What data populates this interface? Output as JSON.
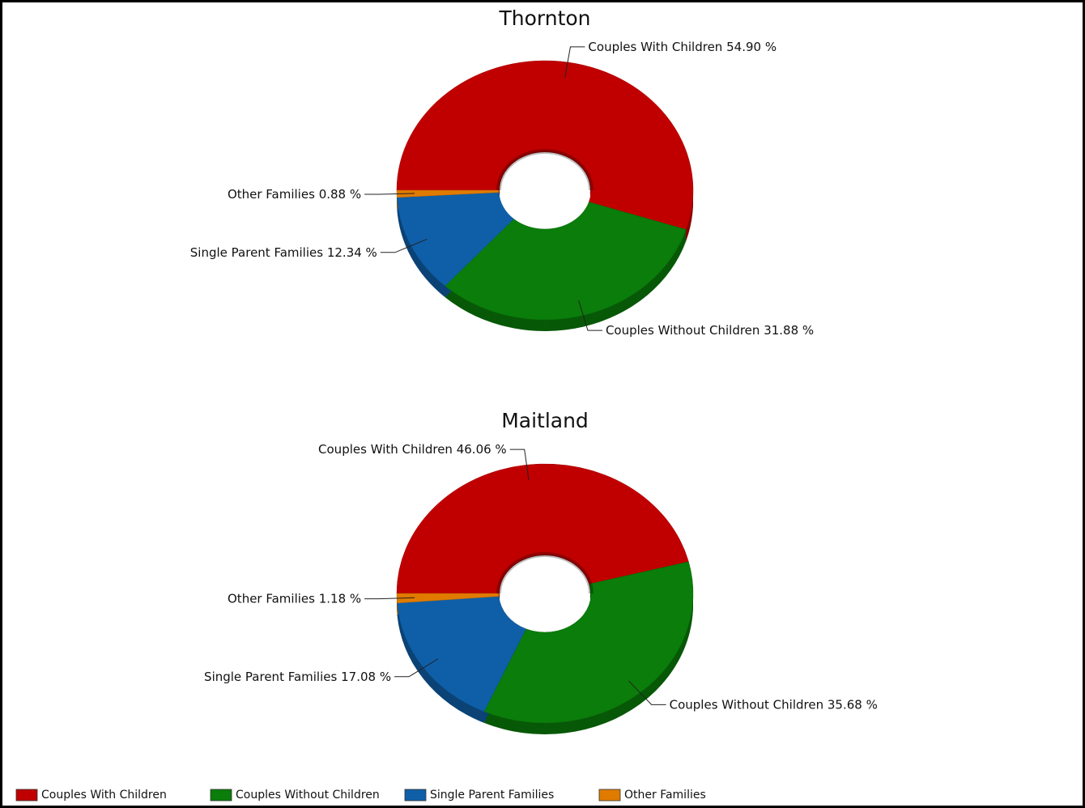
{
  "chart_data": [
    {
      "type": "donut",
      "title": "Thornton",
      "categories": [
        "Couples With Children",
        "Couples Without Children",
        "Single Parent Families",
        "Other Families"
      ],
      "values": [
        54.9,
        31.88,
        12.34,
        0.88
      ],
      "value_labels": [
        "54.90 %",
        "31.88 %",
        "12.34 %",
        "0.88 %"
      ],
      "colors": [
        "#c00000",
        "#0a7d0a",
        "#0f5fa8",
        "#e07b00"
      ],
      "legend": "bottom-left"
    },
    {
      "type": "donut",
      "title": "Maitland",
      "categories": [
        "Couples With Children",
        "Couples Without Children",
        "Single Parent Families",
        "Other Families"
      ],
      "values": [
        46.06,
        35.68,
        17.08,
        1.18
      ],
      "value_labels": [
        "46.06 %",
        "35.68 %",
        "17.08 %",
        "1.18 %"
      ],
      "colors": [
        "#c00000",
        "#0a7d0a",
        "#0f5fa8",
        "#e07b00"
      ]
    }
  ]
}
